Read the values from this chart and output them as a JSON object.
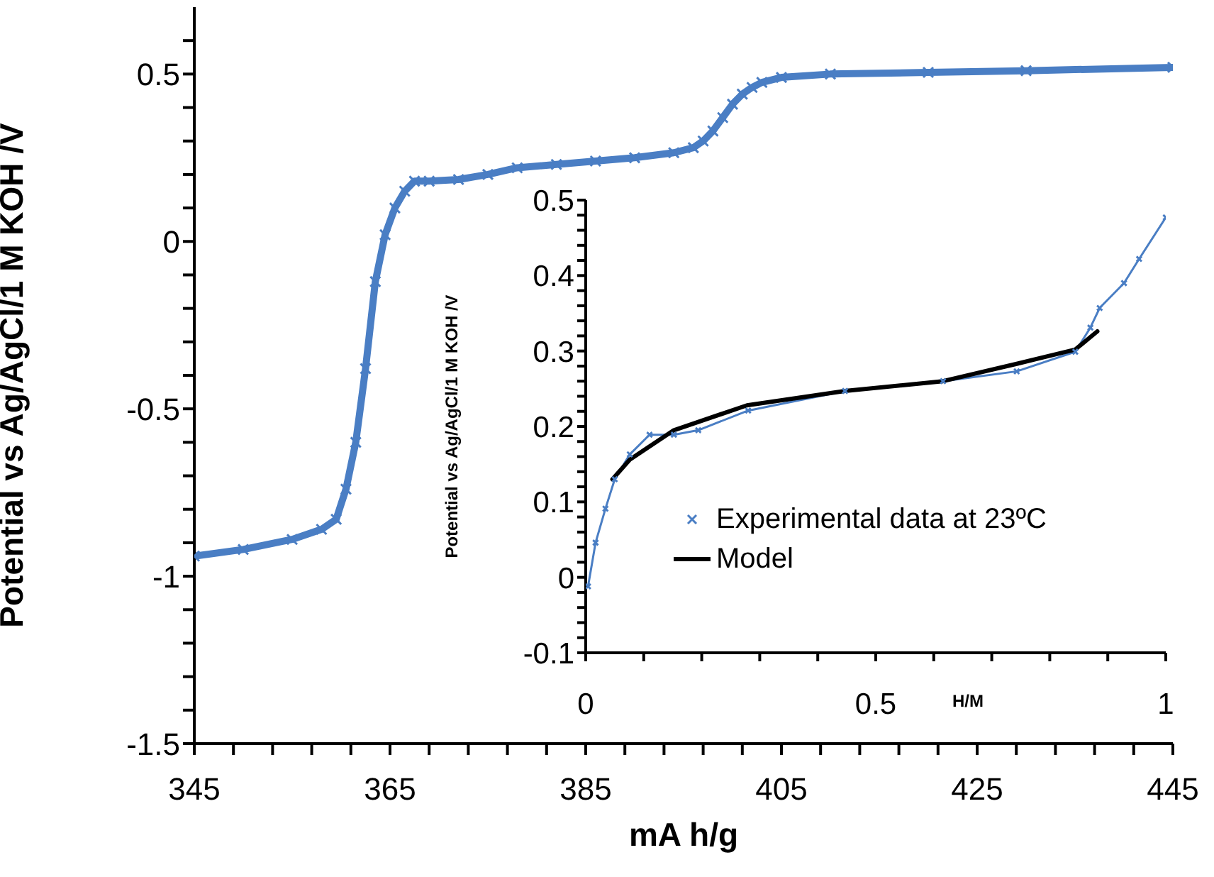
{
  "chart_data": [
    {
      "type": "line",
      "xlabel": "mA h/g",
      "ylabel": "Potential vs Ag/AgCl/1 M KOH /V",
      "xlim": [
        345,
        445
      ],
      "ylim": [
        -1.5,
        0.7
      ],
      "marker": "cross",
      "grid": false,
      "legend": false,
      "xticks": [
        345,
        {
          "value": 349,
          "label": null
        },
        {
          "value": 353,
          "label": null
        },
        {
          "value": 357,
          "label": null
        },
        {
          "value": 361,
          "label": null
        },
        365,
        {
          "value": 369,
          "label": null
        },
        {
          "value": 373,
          "label": null
        },
        {
          "value": 377,
          "label": null
        },
        {
          "value": 381,
          "label": null
        },
        385,
        {
          "value": 389,
          "label": null
        },
        {
          "value": 393,
          "label": null
        },
        {
          "value": 397,
          "label": null
        },
        {
          "value": 401,
          "label": null
        },
        405,
        {
          "value": 409,
          "label": null
        },
        {
          "value": 413,
          "label": null
        },
        {
          "value": 417,
          "label": null
        },
        {
          "value": 421,
          "label": null
        },
        425,
        {
          "value": 429,
          "label": null
        },
        {
          "value": 433,
          "label": null
        },
        {
          "value": 437,
          "label": null
        },
        {
          "value": 441,
          "label": null
        },
        445
      ],
      "yticks": [
        -1.5,
        {
          "value": -1.4,
          "label": null
        },
        {
          "value": -1.3,
          "label": null
        },
        {
          "value": -1.2,
          "label": null
        },
        {
          "value": -1.1,
          "label": null
        },
        -1,
        {
          "value": -0.9,
          "label": null
        },
        {
          "value": -0.8,
          "label": null
        },
        {
          "value": -0.7,
          "label": null
        },
        {
          "value": -0.6,
          "label": null
        },
        -0.5,
        {
          "value": -0.4,
          "label": null
        },
        {
          "value": -0.3,
          "label": null
        },
        {
          "value": -0.2,
          "label": null
        },
        {
          "value": -0.1,
          "label": null
        },
        0,
        {
          "value": 0.1,
          "label": null
        },
        {
          "value": 0.2,
          "label": null
        },
        {
          "value": 0.3,
          "label": null
        },
        {
          "value": 0.4,
          "label": null
        },
        0.5,
        {
          "value": 0.6,
          "label": null
        }
      ],
      "x": [
        345,
        350,
        355,
        358,
        359.5,
        360.5,
        361.5,
        362.5,
        363.5,
        364.5,
        365.5,
        366.5,
        367.5,
        369,
        372,
        375,
        378,
        382,
        386,
        390,
        394,
        396,
        397,
        398,
        399,
        400,
        401,
        402,
        403,
        405,
        410,
        420,
        430,
        445
      ],
      "series": [
        {
          "color": "#4a7ec4",
          "values": [
            -0.94,
            -0.92,
            -0.89,
            -0.86,
            -0.83,
            -0.74,
            -0.6,
            -0.38,
            -0.12,
            0.02,
            0.1,
            0.15,
            0.18,
            0.18,
            0.185,
            0.2,
            0.22,
            0.23,
            0.24,
            0.25,
            0.265,
            0.28,
            0.3,
            0.33,
            0.37,
            0.41,
            0.44,
            0.46,
            0.475,
            0.49,
            0.5,
            0.505,
            0.51,
            0.52
          ]
        }
      ]
    },
    {
      "type": "line",
      "xlabel": "H/M",
      "ylabel": "Potential vs Ag/AgCl/1 M KOH /V",
      "xlim": [
        0,
        1
      ],
      "ylim": [
        -0.1,
        0.5
      ],
      "grid": false,
      "legend": "bottom",
      "xticks": [
        0,
        {
          "value": 0.1,
          "label": null
        },
        {
          "value": 0.2,
          "label": null
        },
        {
          "value": 0.3,
          "label": null
        },
        {
          "value": 0.4,
          "label": null
        },
        0.5,
        {
          "value": 0.6,
          "label": null
        },
        {
          "value": 0.7,
          "label": null
        },
        {
          "value": 0.8,
          "label": null
        },
        {
          "value": 0.9,
          "label": null
        },
        1
      ],
      "yticks": [
        -0.1,
        {
          "value": -0.08,
          "label": null
        },
        {
          "value": -0.06,
          "label": null
        },
        {
          "value": -0.04,
          "label": null
        },
        {
          "value": -0.02,
          "label": null
        },
        0,
        {
          "value": 0.02,
          "label": null
        },
        {
          "value": 0.04,
          "label": null
        },
        {
          "value": 0.06,
          "label": null
        },
        {
          "value": 0.08,
          "label": null
        },
        0.1,
        {
          "value": 0.12,
          "label": null
        },
        {
          "value": 0.14,
          "label": null
        },
        {
          "value": 0.16,
          "label": null
        },
        {
          "value": 0.18,
          "label": null
        },
        0.2,
        {
          "value": 0.22,
          "label": null
        },
        {
          "value": 0.24,
          "label": null
        },
        {
          "value": 0.26,
          "label": null
        },
        {
          "value": 0.28,
          "label": null
        },
        0.3,
        {
          "value": 0.32,
          "label": null
        },
        {
          "value": 0.34,
          "label": null
        },
        {
          "value": 0.36,
          "label": null
        },
        {
          "value": 0.38,
          "label": null
        },
        0.4,
        {
          "value": 0.42,
          "label": null
        },
        {
          "value": 0.44,
          "label": null
        },
        {
          "value": 0.46,
          "label": null
        },
        {
          "value": 0.48,
          "label": null
        },
        0.5
      ],
      "series": [
        {
          "name": "Experimental data at 23ºC",
          "color": "#4a7ec4",
          "marker": "cross",
          "x": [
            0.004,
            0.017,
            0.034,
            0.05,
            0.076,
            0.11,
            0.152,
            0.194,
            0.28,
            0.447,
            0.616,
            0.743,
            0.844,
            0.87,
            0.886,
            0.928,
            0.954,
            1.0
          ],
          "values": [
            -0.012,
            0.046,
            0.091,
            0.13,
            0.163,
            0.189,
            0.189,
            0.195,
            0.221,
            0.247,
            0.26,
            0.273,
            0.299,
            0.331,
            0.357,
            0.39,
            0.422,
            0.477
          ]
        },
        {
          "name": "Model",
          "color": "#000000",
          "marker": "none",
          "x": [
            0.046,
            0.076,
            0.152,
            0.278,
            0.447,
            0.616,
            0.743,
            0.844,
            0.882
          ],
          "values": [
            0.13,
            0.156,
            0.195,
            0.228,
            0.247,
            0.26,
            0.283,
            0.302,
            0.326
          ]
        }
      ]
    }
  ]
}
